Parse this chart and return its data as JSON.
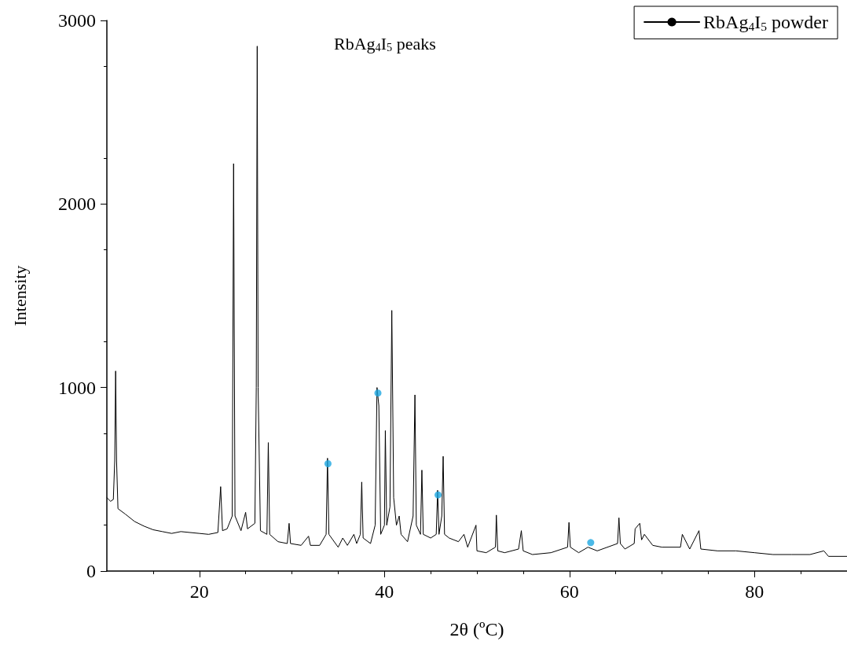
{
  "chart_data": {
    "type": "line",
    "xlabel": "2θ (ºC)",
    "ylabel": "Intensity",
    "xlim": [
      10,
      90
    ],
    "xticks": [
      20,
      40,
      60,
      80
    ],
    "ylim": [
      0,
      3000
    ],
    "yticks": [
      0,
      1000,
      2000,
      3000
    ],
    "grid": false,
    "legend": "top right",
    "marker": "none",
    "line_style": "solid",
    "annotations": [
      "RbAg$_{4}$I$_{5}$ peaks"
    ],
    "series": [
      {
        "name": "RbAg$_{4}$I$_{5}$ powder",
        "color": "#000000",
        "x": [
          10,
          10.4,
          10.7,
          10.85,
          10.95,
          11.05,
          11.2,
          12,
          13,
          14,
          15,
          16,
          17,
          18,
          19,
          20,
          21,
          22,
          22.3,
          22.5,
          23,
          23.55,
          23.7,
          23.85,
          24.5,
          25,
          25.2,
          26,
          26.15,
          26.25,
          26.35,
          26.6,
          27.3,
          27.45,
          27.6,
          28.5,
          29.5,
          29.7,
          29.85,
          31,
          31.8,
          32,
          33,
          33.7,
          33.85,
          34,
          35,
          35.5,
          36,
          36.7,
          37,
          37.4,
          37.55,
          37.7,
          38.5,
          39,
          39.2,
          39.4,
          39.6,
          40,
          40.1,
          40.25,
          40.6,
          40.8,
          41,
          41.3,
          41.6,
          41.8,
          42.5,
          43.1,
          43.3,
          43.45,
          43.9,
          44.05,
          44.2,
          45,
          45.6,
          45.75,
          45.9,
          46.2,
          46.35,
          46.5,
          47,
          48,
          48.6,
          49,
          49.9,
          50,
          51,
          52,
          52.1,
          52.25,
          53,
          54.5,
          54.8,
          55,
          56,
          58,
          59.8,
          59.95,
          60.1,
          61,
          62,
          63,
          65.2,
          65.35,
          65.5,
          66,
          67,
          67.1,
          67.6,
          67.8,
          68.1,
          69,
          70,
          72,
          72.2,
          73,
          74,
          74.2,
          76,
          78,
          80,
          82,
          84,
          86,
          87.5,
          88,
          90
        ],
        "values": [
          400,
          380,
          390,
          600,
          1090,
          600,
          340,
          310,
          270,
          245,
          225,
          215,
          205,
          215,
          210,
          205,
          200,
          210,
          460,
          220,
          230,
          300,
          2220,
          300,
          220,
          320,
          230,
          260,
          1000,
          2860,
          1000,
          220,
          200,
          700,
          200,
          160,
          150,
          260,
          150,
          140,
          190,
          140,
          140,
          200,
          615,
          200,
          130,
          180,
          140,
          200,
          150,
          200,
          485,
          180,
          150,
          250,
          1000,
          900,
          200,
          250,
          765,
          250,
          350,
          1420,
          400,
          250,
          300,
          200,
          160,
          300,
          960,
          250,
          200,
          550,
          200,
          180,
          200,
          440,
          200,
          300,
          625,
          200,
          180,
          160,
          200,
          130,
          250,
          110,
          100,
          130,
          305,
          110,
          100,
          120,
          220,
          110,
          90,
          100,
          130,
          265,
          130,
          100,
          130,
          110,
          150,
          290,
          150,
          120,
          150,
          230,
          260,
          170,
          200,
          140,
          130,
          130,
          200,
          120,
          220,
          120,
          110,
          110,
          100,
          90,
          90,
          90,
          110,
          80,
          80
        ]
      },
      {
        "type": "scatter",
        "color": "#1ea7e1",
        "marker": "circle",
        "x": [
          33.9,
          39.3,
          45.8,
          62.3
        ],
        "values": [
          585,
          970,
          415,
          155
        ]
      }
    ]
  }
}
